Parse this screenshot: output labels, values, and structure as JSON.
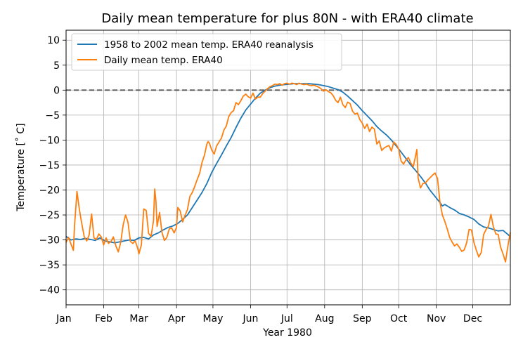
{
  "chart_data": {
    "type": "line",
    "title": "Daily mean temperature for plus 80N - with ERA40 climate",
    "xlabel": "Year 1980",
    "ylabel": "Temperature [˚ C]",
    "xlim": [
      0,
      366
    ],
    "ylim": [
      -43,
      12
    ],
    "grid": true,
    "legend_position": "top-left",
    "x_ticks": [
      {
        "x": 0,
        "label": "Jan"
      },
      {
        "x": 31,
        "label": "Feb"
      },
      {
        "x": 60,
        "label": "Mar"
      },
      {
        "x": 91,
        "label": "Apr"
      },
      {
        "x": 121,
        "label": "May"
      },
      {
        "x": 152,
        "label": "Jun"
      },
      {
        "x": 182,
        "label": "Jul"
      },
      {
        "x": 213,
        "label": "Aug"
      },
      {
        "x": 244,
        "label": "Sep"
      },
      {
        "x": 274,
        "label": "Oct"
      },
      {
        "x": 305,
        "label": "Nov"
      },
      {
        "x": 335,
        "label": "Dec"
      }
    ],
    "y_ticks": [
      {
        "y": 10,
        "label": "10"
      },
      {
        "y": 5,
        "label": "5"
      },
      {
        "y": 0,
        "label": "0"
      },
      {
        "y": -5,
        "label": "−5"
      },
      {
        "y": -10,
        "label": "−10"
      },
      {
        "y": -15,
        "label": "−15"
      },
      {
        "y": -20,
        "label": "−20"
      },
      {
        "y": -25,
        "label": "−25"
      },
      {
        "y": -30,
        "label": "−30"
      },
      {
        "y": -35,
        "label": "−35"
      },
      {
        "y": -40,
        "label": "−40"
      }
    ],
    "reference_line": {
      "y": 0,
      "style": "dashed",
      "color": "#555555"
    },
    "series": [
      {
        "name": "1958 to 2002 mean temp. ERA40 reanalysis",
        "color": "#1f77b4",
        "points": [
          [
            0,
            -29.3
          ],
          [
            4,
            -30
          ],
          [
            8,
            -29.8
          ],
          [
            12,
            -29.9
          ],
          [
            16,
            -29.7
          ],
          [
            20,
            -29.9
          ],
          [
            24,
            -30.1
          ],
          [
            28,
            -29.6
          ],
          [
            32,
            -30.2
          ],
          [
            36,
            -30.4
          ],
          [
            40,
            -30.6
          ],
          [
            44,
            -30.4
          ],
          [
            48,
            -30.2
          ],
          [
            52,
            -30.0
          ],
          [
            56,
            -30.1
          ],
          [
            60,
            -29.6
          ],
          [
            64,
            -29.5
          ],
          [
            68,
            -29.8
          ],
          [
            72,
            -29.0
          ],
          [
            76,
            -28.6
          ],
          [
            80,
            -28.0
          ],
          [
            84,
            -27.5
          ],
          [
            88,
            -27.2
          ],
          [
            92,
            -26.7
          ],
          [
            96,
            -25.9
          ],
          [
            100,
            -25.0
          ],
          [
            104,
            -23.5
          ],
          [
            108,
            -22.0
          ],
          [
            112,
            -20.5
          ],
          [
            116,
            -18.7
          ],
          [
            120,
            -16.5
          ],
          [
            124,
            -14.7
          ],
          [
            128,
            -13.0
          ],
          [
            132,
            -11.2
          ],
          [
            136,
            -9.5
          ],
          [
            140,
            -7.5
          ],
          [
            144,
            -5.6
          ],
          [
            148,
            -4.0
          ],
          [
            152,
            -2.8
          ],
          [
            156,
            -1.6
          ],
          [
            160,
            -0.6
          ],
          [
            164,
            0.0
          ],
          [
            168,
            0.5
          ],
          [
            172,
            0.8
          ],
          [
            176,
            1.0
          ],
          [
            180,
            1.1
          ],
          [
            184,
            1.2
          ],
          [
            188,
            1.3
          ],
          [
            192,
            1.3
          ],
          [
            196,
            1.3
          ],
          [
            200,
            1.3
          ],
          [
            204,
            1.2
          ],
          [
            208,
            1.1
          ],
          [
            212,
            0.9
          ],
          [
            216,
            0.7
          ],
          [
            220,
            0.4
          ],
          [
            224,
            0.1
          ],
          [
            228,
            -0.4
          ],
          [
            232,
            -1.2
          ],
          [
            236,
            -2.1
          ],
          [
            240,
            -3.0
          ],
          [
            244,
            -4.1
          ],
          [
            248,
            -5.1
          ],
          [
            252,
            -6.1
          ],
          [
            256,
            -7.3
          ],
          [
            260,
            -8.2
          ],
          [
            264,
            -9.0
          ],
          [
            268,
            -10.0
          ],
          [
            272,
            -11.2
          ],
          [
            276,
            -12.4
          ],
          [
            280,
            -13.7
          ],
          [
            284,
            -15.0
          ],
          [
            288,
            -16.1
          ],
          [
            292,
            -17.3
          ],
          [
            296,
            -18.6
          ],
          [
            300,
            -20.1
          ],
          [
            304,
            -21.3
          ],
          [
            308,
            -22.5
          ],
          [
            310,
            -23.2
          ],
          [
            312,
            -22.9
          ],
          [
            316,
            -23.5
          ],
          [
            320,
            -24.0
          ],
          [
            324,
            -24.7
          ],
          [
            328,
            -25.0
          ],
          [
            332,
            -25.4
          ],
          [
            336,
            -25.9
          ],
          [
            340,
            -26.8
          ],
          [
            344,
            -27.4
          ],
          [
            348,
            -27.6
          ],
          [
            352,
            -27.9
          ],
          [
            356,
            -28.2
          ],
          [
            360,
            -28.1
          ],
          [
            364,
            -28.9
          ],
          [
            366,
            -29.4
          ]
        ]
      },
      {
        "name": "Daily mean temp. ERA40",
        "color": "#ff7f0e",
        "points": [
          [
            0,
            -30.5
          ],
          [
            2,
            -29.5
          ],
          [
            4,
            -30.8
          ],
          [
            6,
            -32.1
          ],
          [
            7,
            -27
          ],
          [
            9,
            -20.3
          ],
          [
            11,
            -24
          ],
          [
            13,
            -26.8
          ],
          [
            15,
            -29.4
          ],
          [
            17,
            -30.2
          ],
          [
            19,
            -29
          ],
          [
            21,
            -24.8
          ],
          [
            23,
            -29.6
          ],
          [
            25,
            -29.9
          ],
          [
            27,
            -28.8
          ],
          [
            29,
            -29.4
          ],
          [
            31,
            -31
          ],
          [
            33,
            -29.6
          ],
          [
            35,
            -30.7
          ],
          [
            37,
            -30.3
          ],
          [
            39,
            -29.4
          ],
          [
            41,
            -31.2
          ],
          [
            43,
            -32.4
          ],
          [
            45,
            -30.5
          ],
          [
            47,
            -27
          ],
          [
            49,
            -25
          ],
          [
            51,
            -26.5
          ],
          [
            53,
            -30.3
          ],
          [
            55,
            -30.7
          ],
          [
            57,
            -30.2
          ],
          [
            59,
            -31.7
          ],
          [
            60,
            -32.8
          ],
          [
            62,
            -31
          ],
          [
            64,
            -23.8
          ],
          [
            66,
            -24.1
          ],
          [
            68,
            -28.7
          ],
          [
            70,
            -29.3
          ],
          [
            72,
            -26.2
          ],
          [
            73,
            -19.8
          ],
          [
            74,
            -22.2
          ],
          [
            75,
            -27.3
          ],
          [
            77,
            -24.5
          ],
          [
            79,
            -28.5
          ],
          [
            81,
            -30.1
          ],
          [
            83,
            -29.5
          ],
          [
            85,
            -27.8
          ],
          [
            87,
            -27.6
          ],
          [
            89,
            -28.6
          ],
          [
            91,
            -27.5
          ],
          [
            92,
            -23.5
          ],
          [
            94,
            -24.2
          ],
          [
            96,
            -26.4
          ],
          [
            98,
            -25.1
          ],
          [
            100,
            -23.9
          ],
          [
            102,
            -21.3
          ],
          [
            104,
            -20.5
          ],
          [
            106,
            -19.3
          ],
          [
            108,
            -17.9
          ],
          [
            110,
            -16.7
          ],
          [
            112,
            -14.5
          ],
          [
            114,
            -13
          ],
          [
            116,
            -10.8
          ],
          [
            117,
            -10.3
          ],
          [
            118,
            -10.6
          ],
          [
            120,
            -12
          ],
          [
            122,
            -12.8
          ],
          [
            124,
            -11.2
          ],
          [
            126,
            -10.4
          ],
          [
            128,
            -9.6
          ],
          [
            130,
            -8
          ],
          [
            132,
            -7.2
          ],
          [
            134,
            -5.3
          ],
          [
            136,
            -4.5
          ],
          [
            138,
            -4.1
          ],
          [
            140,
            -2.5
          ],
          [
            142,
            -2.9
          ],
          [
            144,
            -2.1
          ],
          [
            146,
            -1.2
          ],
          [
            148,
            -0.8
          ],
          [
            150,
            -1.3
          ],
          [
            152,
            -1.6
          ],
          [
            154,
            -0.6
          ],
          [
            156,
            -1.8
          ],
          [
            158,
            -1.4
          ],
          [
            160,
            -1.4
          ],
          [
            162,
            -0.7
          ],
          [
            164,
            -0.2
          ],
          [
            166,
            0.3
          ],
          [
            168,
            0.7
          ],
          [
            170,
            0.9
          ],
          [
            172,
            1.2
          ],
          [
            174,
            1.1
          ],
          [
            176,
            1.3
          ],
          [
            178,
            1.0
          ],
          [
            180,
            1.3
          ],
          [
            182,
            1.4
          ],
          [
            184,
            1.2
          ],
          [
            186,
            1.4
          ],
          [
            188,
            1.3
          ],
          [
            190,
            1.1
          ],
          [
            192,
            1.4
          ],
          [
            194,
            1.2
          ],
          [
            196,
            1.1
          ],
          [
            198,
            1.2
          ],
          [
            200,
            1.0
          ],
          [
            202,
            0.9
          ],
          [
            204,
            1.0
          ],
          [
            206,
            0.8
          ],
          [
            208,
            0.6
          ],
          [
            210,
            0.3
          ],
          [
            212,
            -0.2
          ],
          [
            214,
            0.1
          ],
          [
            216,
            -0.3
          ],
          [
            218,
            -0.5
          ],
          [
            220,
            -1.1
          ],
          [
            222,
            -2.0
          ],
          [
            224,
            -2.5
          ],
          [
            226,
            -1.4
          ],
          [
            228,
            -2.9
          ],
          [
            230,
            -3.5
          ],
          [
            232,
            -2.4
          ],
          [
            234,
            -2.7
          ],
          [
            236,
            -4.2
          ],
          [
            238,
            -4.8
          ],
          [
            240,
            -4.6
          ],
          [
            242,
            -5.9
          ],
          [
            244,
            -6.6
          ],
          [
            246,
            -7.7
          ],
          [
            248,
            -6.8
          ],
          [
            250,
            -8.3
          ],
          [
            252,
            -7.4
          ],
          [
            254,
            -7.8
          ],
          [
            256,
            -10.8
          ],
          [
            258,
            -10.2
          ],
          [
            260,
            -12.1
          ],
          [
            262,
            -11.6
          ],
          [
            264,
            -11.3
          ],
          [
            266,
            -11.1
          ],
          [
            268,
            -12.2
          ],
          [
            270,
            -10.4
          ],
          [
            272,
            -10.9
          ],
          [
            274,
            -11.8
          ],
          [
            276,
            -14.2
          ],
          [
            278,
            -14.8
          ],
          [
            280,
            -14.0
          ],
          [
            282,
            -13.5
          ],
          [
            284,
            -14.6
          ],
          [
            286,
            -15.3
          ],
          [
            288,
            -13.1
          ],
          [
            289,
            -11.9
          ],
          [
            290,
            -17.6
          ],
          [
            292,
            -19.6
          ],
          [
            294,
            -18.7
          ],
          [
            296,
            -18.6
          ],
          [
            298,
            -18.0
          ],
          [
            300,
            -17.5
          ],
          [
            302,
            -17.0
          ],
          [
            304,
            -16.6
          ],
          [
            306,
            -17.7
          ],
          [
            308,
            -22.4
          ],
          [
            310,
            -25
          ],
          [
            312,
            -26.3
          ],
          [
            314,
            -27.8
          ],
          [
            316,
            -29.5
          ],
          [
            318,
            -30.4
          ],
          [
            320,
            -31.2
          ],
          [
            322,
            -30.8
          ],
          [
            324,
            -31.5
          ],
          [
            326,
            -32.3
          ],
          [
            328,
            -32.0
          ],
          [
            330,
            -30.6
          ],
          [
            332,
            -27.9
          ],
          [
            334,
            -28.0
          ],
          [
            336,
            -30.5
          ],
          [
            338,
            -32.1
          ],
          [
            340,
            -33.4
          ],
          [
            342,
            -32.5
          ],
          [
            344,
            -28.9
          ],
          [
            346,
            -27.9
          ],
          [
            348,
            -27.2
          ],
          [
            350,
            -24.9
          ],
          [
            352,
            -27.3
          ],
          [
            354,
            -28.8
          ],
          [
            356,
            -28.9
          ],
          [
            358,
            -31.5
          ],
          [
            360,
            -32.8
          ],
          [
            362,
            -34.4
          ],
          [
            364,
            -31.2
          ],
          [
            366,
            -28.5
          ]
        ]
      }
    ]
  }
}
